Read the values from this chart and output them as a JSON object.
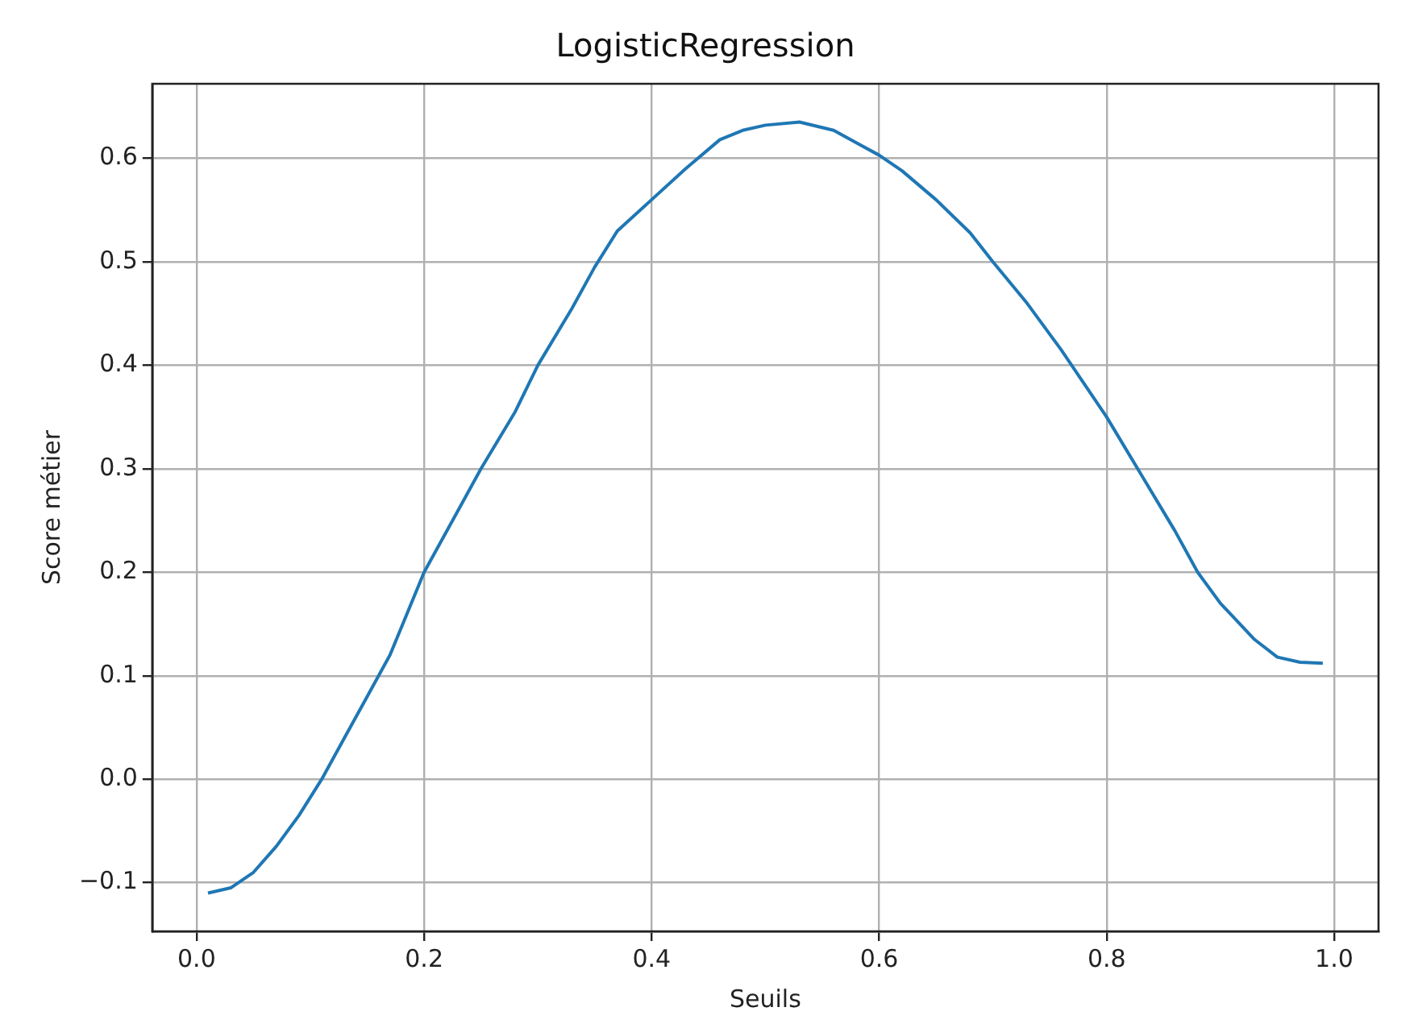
{
  "chart_data": {
    "type": "line",
    "title": "LogisticRegression",
    "xlabel": "Seuils",
    "ylabel": "Score métier",
    "x": [
      0.01,
      0.03,
      0.05,
      0.07,
      0.09,
      0.11,
      0.13,
      0.15,
      0.17,
      0.2,
      0.23,
      0.25,
      0.28,
      0.3,
      0.33,
      0.35,
      0.37,
      0.4,
      0.43,
      0.46,
      0.48,
      0.5,
      0.53,
      0.56,
      0.58,
      0.6,
      0.62,
      0.65,
      0.68,
      0.7,
      0.73,
      0.76,
      0.8,
      0.83,
      0.86,
      0.88,
      0.9,
      0.93,
      0.95,
      0.97,
      0.99
    ],
    "series": [
      {
        "color": "#1f77b4",
        "values": [
          -0.11,
          -0.105,
          -0.09,
          -0.065,
          -0.035,
          0.0,
          0.04,
          0.08,
          0.12,
          0.2,
          0.26,
          0.3,
          0.355,
          0.4,
          0.455,
          0.495,
          0.53,
          0.56,
          0.59,
          0.618,
          0.627,
          0.632,
          0.635,
          0.627,
          0.615,
          0.603,
          0.588,
          0.56,
          0.528,
          0.5,
          0.46,
          0.415,
          0.35,
          0.295,
          0.24,
          0.2,
          0.17,
          0.135,
          0.118,
          0.113,
          0.112
        ]
      }
    ],
    "xlim": [
      -0.039,
      1.039
    ],
    "ylim": [
      -0.147,
      0.672
    ],
    "xticks": [
      {
        "value": 0,
        "label": "0.0"
      },
      0.2,
      0.4,
      0.6,
      0.8,
      {
        "value": 1,
        "label": "1.0"
      }
    ],
    "yticks": [
      {
        "value": -0.1,
        "label": "−0.1"
      },
      {
        "value": 0,
        "label": "0.0"
      },
      0.1,
      0.2,
      0.3,
      0.4,
      0.5,
      0.6
    ],
    "grid": true,
    "legend": false,
    "marker": "none",
    "line_style": "solid"
  }
}
